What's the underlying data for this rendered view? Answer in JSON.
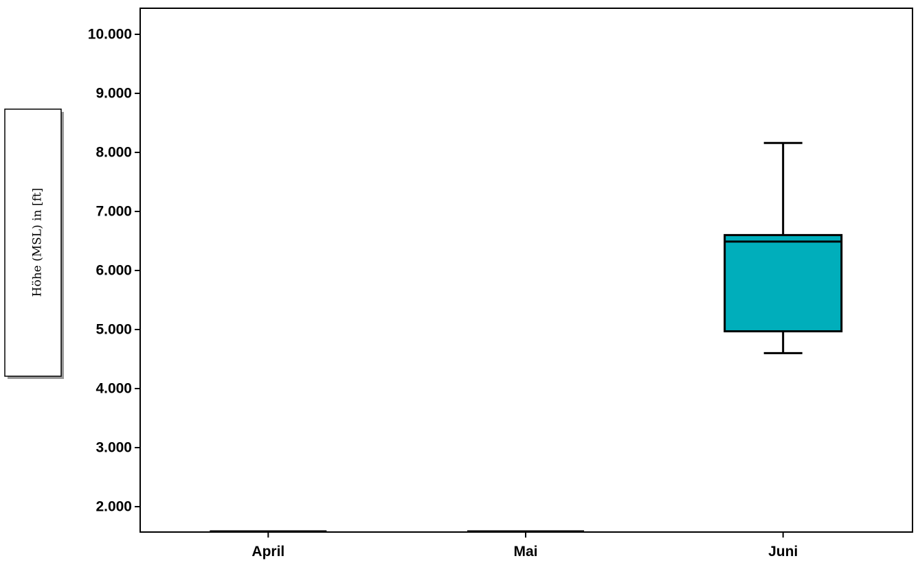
{
  "chart_data": {
    "type": "boxplot",
    "title": "",
    "xlabel": "",
    "ylabel": "Höhe (MSL) in [ft]",
    "categories": [
      "April",
      "Mai",
      "Juni"
    ],
    "y_ticks": [
      2000,
      3000,
      4000,
      5000,
      6000,
      7000,
      8000,
      9000,
      10000
    ],
    "y_tick_labels": [
      "2.000",
      "3.000",
      "4.000",
      "5.000",
      "6.000",
      "7.000",
      "8.000",
      "9.000",
      "10.000"
    ],
    "ylim": [
      1550,
      10450
    ],
    "grid": false,
    "legend": "none",
    "box_color": "#00AEBB",
    "boxes": [
      {
        "category": "April",
        "degenerate": true,
        "value": 1560
      },
      {
        "category": "Mai",
        "degenerate": true,
        "value": 1560
      },
      {
        "category": "Juni",
        "whisker_low": 4600,
        "q1": 4970,
        "median": 6490,
        "q3": 6600,
        "whisker_high": 8160
      }
    ]
  }
}
